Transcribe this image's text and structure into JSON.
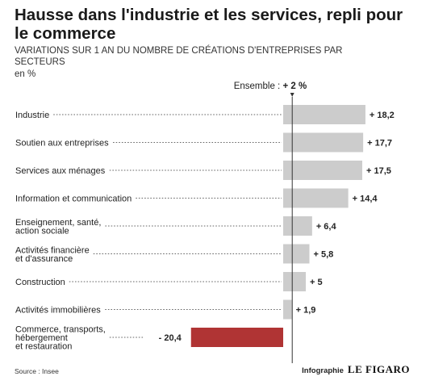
{
  "title": "Hausse dans l'industrie et les services, repli pour le commerce",
  "subtitle": "VARIATIONS SUR 1 AN DU NOMBRE DE CRÉATIONS D'ENTREPRISES PAR SECTEURS",
  "unit": "en %",
  "source": "Source : Insee",
  "credit_label": "Infographie",
  "credit_brand": "LE FIGARO",
  "chart_data": {
    "type": "bar",
    "orientation": "horizontal",
    "reference": {
      "label": "Ensemble : ",
      "value_label": "+ 2 %",
      "value": 2
    },
    "categories": [
      [
        "Industrie"
      ],
      [
        "Soutien aux entreprises"
      ],
      [
        "Services aux ménages"
      ],
      [
        "Information et communication"
      ],
      [
        "Enseignement, santé,",
        "action sociale"
      ],
      [
        "Activités financière",
        "et d'assurance"
      ],
      [
        "Construction"
      ],
      [
        "Activités immobilières"
      ],
      [
        "Commerce, transports,",
        "hébergement",
        "et restauration"
      ]
    ],
    "values": [
      18.2,
      17.7,
      17.5,
      14.4,
      6.4,
      5.8,
      5,
      1.9,
      -20.4
    ],
    "value_labels": [
      "+ 18,2",
      "+ 17,7",
      "+ 17,5",
      "+ 14,4",
      "+ 6,4",
      "+ 5,8",
      "+ 5",
      "+ 1,9",
      "- 20,4"
    ],
    "colors": {
      "positive": "#cccccc",
      "negative": "#b03434",
      "axis": "#333333",
      "leader": "#666666"
    }
  }
}
